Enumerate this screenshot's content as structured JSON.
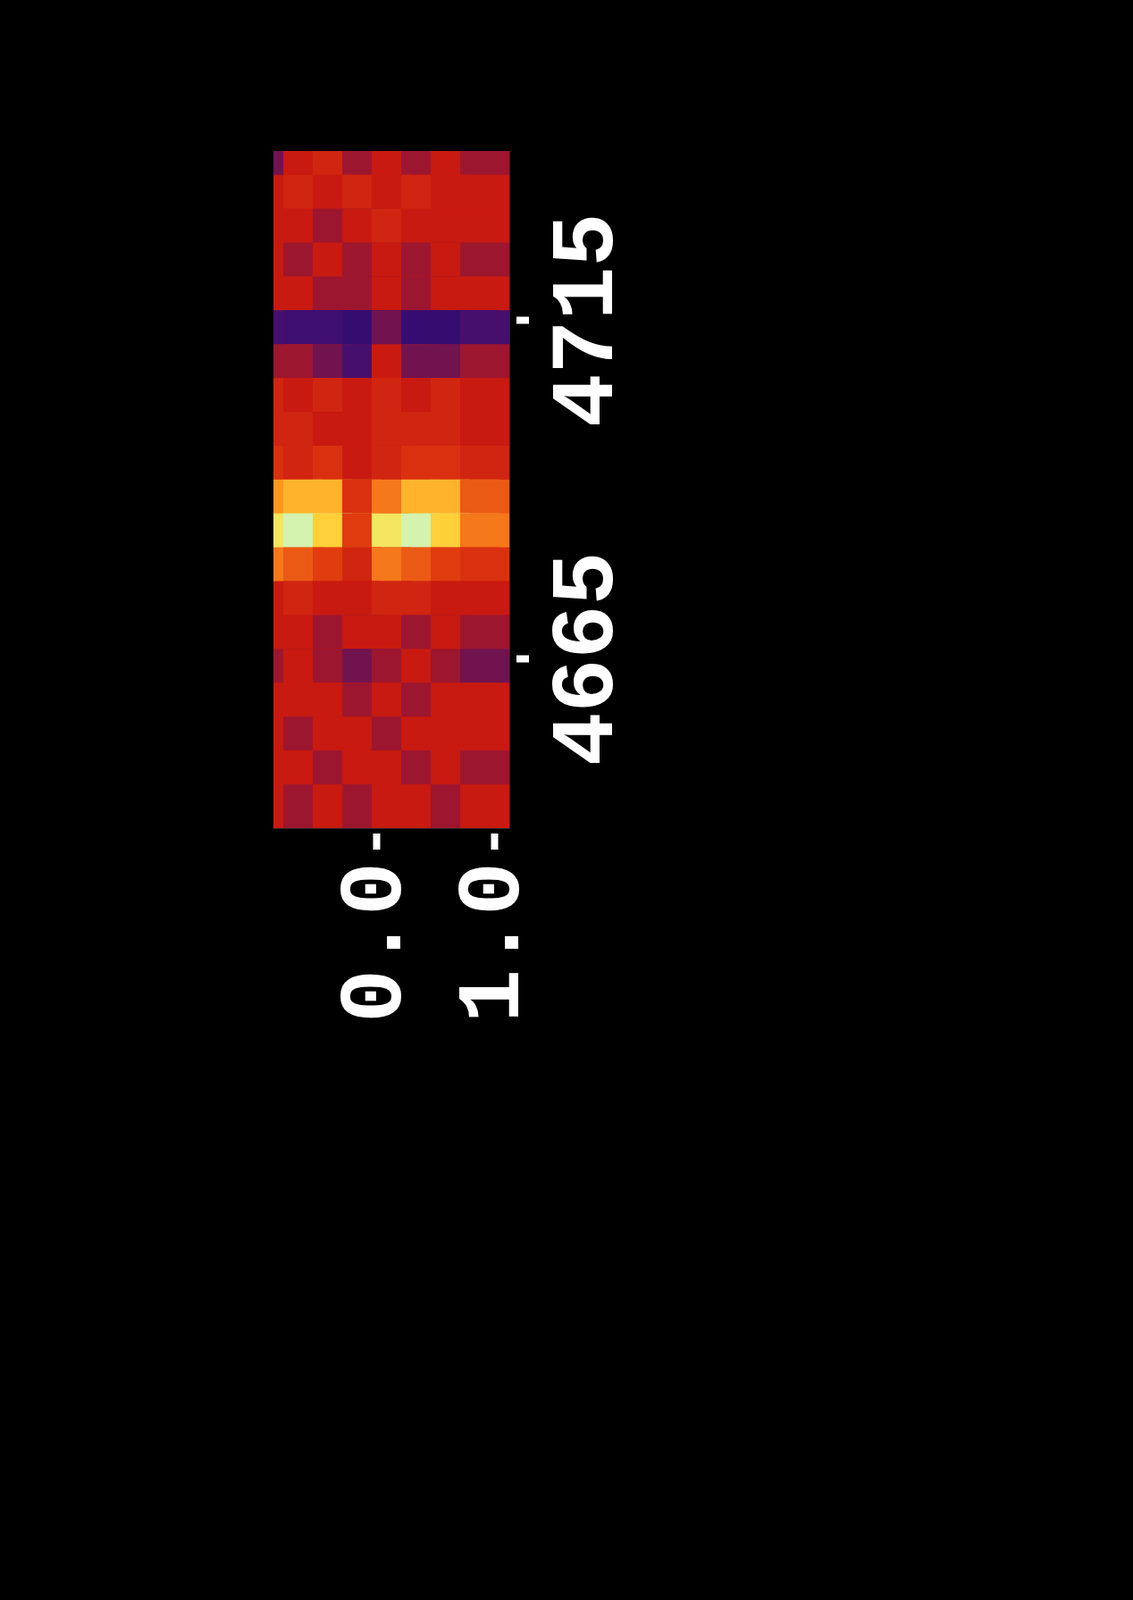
{
  "chart_data": {
    "type": "heatmap",
    "x": [
      -0.75,
      -0.5,
      -0.25,
      0,
      0.25,
      0.5,
      0.75,
      1.0
    ],
    "y": [
      4737.5,
      4732.5,
      4727.5,
      4722.5,
      4717.5,
      4712.5,
      4707.5,
      4702.5,
      4697.5,
      4692.5,
      4687.5,
      4682.5,
      4677.5,
      4672.5,
      4667.5,
      4662.5,
      4657.5,
      4652.5,
      4647.5,
      4642.5
    ],
    "cells": [
      [
        0.35,
        0.45,
        0.5,
        0.4,
        0.45,
        0.4,
        0.45,
        0.4
      ],
      [
        0.45,
        0.5,
        0.45,
        0.5,
        0.45,
        0.5,
        0.45,
        0.45
      ],
      [
        0.45,
        0.45,
        0.4,
        0.45,
        0.5,
        0.45,
        0.45,
        0.45
      ],
      [
        0.45,
        0.4,
        0.45,
        0.4,
        0.45,
        0.4,
        0.45,
        0.4
      ],
      [
        0.45,
        0.45,
        0.4,
        0.4,
        0.45,
        0.4,
        0.45,
        0.45
      ],
      [
        0.3,
        0.25,
        0.25,
        0.2,
        0.35,
        0.2,
        0.2,
        0.3
      ],
      [
        0.4,
        0.4,
        0.35,
        0.3,
        0.45,
        0.35,
        0.35,
        0.4
      ],
      [
        0.5,
        0.45,
        0.5,
        0.45,
        0.5,
        0.45,
        0.5,
        0.45
      ],
      [
        0.5,
        0.5,
        0.45,
        0.45,
        0.5,
        0.5,
        0.5,
        0.45
      ],
      [
        0.55,
        0.5,
        0.55,
        0.45,
        0.5,
        0.55,
        0.55,
        0.5
      ],
      [
        0.75,
        0.8,
        0.8,
        0.55,
        0.7,
        0.8,
        0.8,
        0.65
      ],
      [
        0.9,
        0.95,
        0.85,
        0.6,
        0.9,
        0.95,
        0.85,
        0.7
      ],
      [
        0.7,
        0.65,
        0.6,
        0.5,
        0.7,
        0.65,
        0.6,
        0.55
      ],
      [
        0.45,
        0.5,
        0.45,
        0.45,
        0.5,
        0.5,
        0.45,
        0.45
      ],
      [
        0.45,
        0.45,
        0.4,
        0.45,
        0.45,
        0.4,
        0.45,
        0.4
      ],
      [
        0.4,
        0.45,
        0.4,
        0.35,
        0.4,
        0.45,
        0.4,
        0.35
      ],
      [
        0.45,
        0.45,
        0.45,
        0.4,
        0.45,
        0.4,
        0.45,
        0.45
      ],
      [
        0.45,
        0.4,
        0.45,
        0.45,
        0.4,
        0.45,
        0.45,
        0.45
      ],
      [
        0.45,
        0.45,
        0.4,
        0.45,
        0.45,
        0.4,
        0.45,
        0.4
      ],
      [
        0.45,
        0.4,
        0.45,
        0.4,
        0.45,
        0.45,
        0.4,
        0.45
      ]
    ],
    "xlim": [
      -0.875,
      1.125
    ],
    "xticks": [
      {
        "value": 0,
        "label": "0.0"
      },
      {
        "value": 1,
        "label": "1.0"
      }
    ],
    "ylim": [
      4640,
      4740
    ],
    "yticks": [
      4665,
      4715
    ],
    "zlim": [
      0,
      1
    ]
  }
}
